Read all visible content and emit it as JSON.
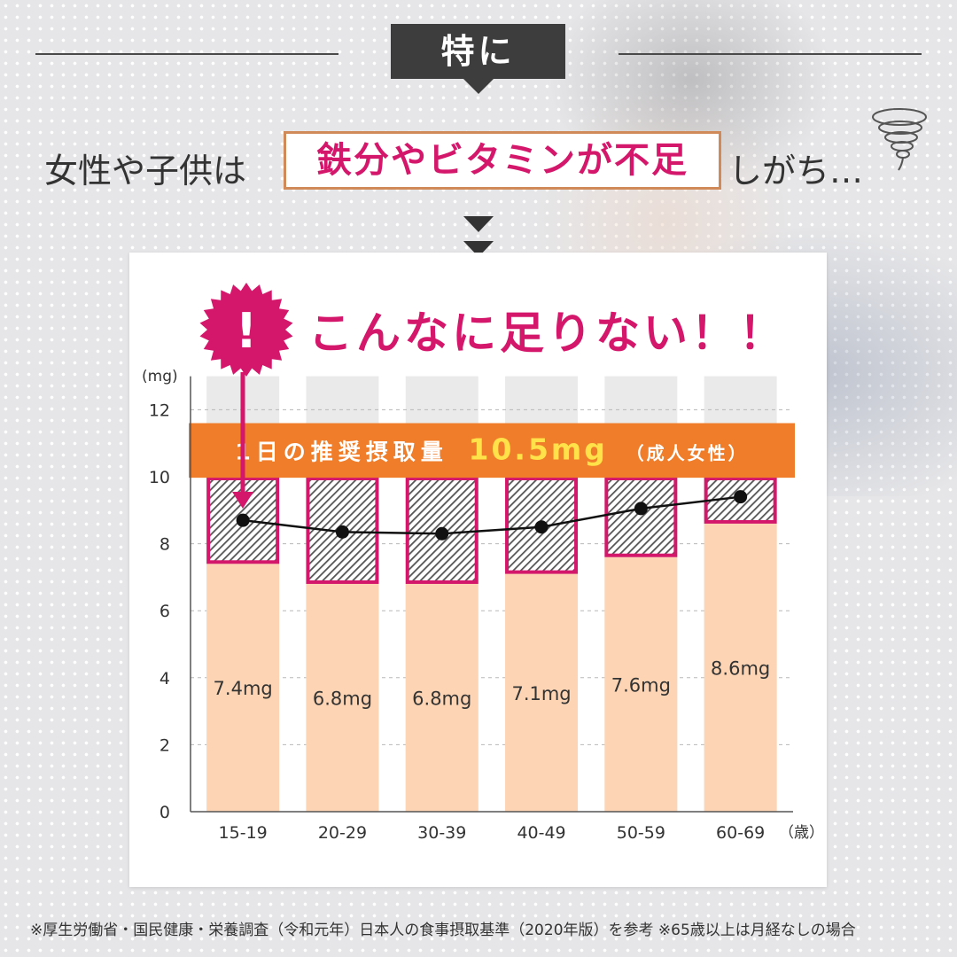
{
  "header": {
    "badge": "特に",
    "line_prefix": "女性や子供は",
    "line_highlight": "鉄分やビタミンが不足",
    "line_suffix": "しがち…"
  },
  "callout": {
    "icon_symbol": "!",
    "text": "こんなに足りない！！"
  },
  "colors": {
    "accent_magenta": "#d4176b",
    "bar_fill": "#fdd5b4",
    "band_orange": "#ef7d2a",
    "band_value": "#ffe14a",
    "dark_badge": "#3d3d3d",
    "hatch": "#555555"
  },
  "chart_data": {
    "type": "bar",
    "title": "",
    "xlabel": "",
    "ylabel": "",
    "y_unit_label": "(mg)",
    "x_unit_label": "（歳）",
    "categories": [
      "15-19",
      "20-29",
      "30-39",
      "40-49",
      "50-59",
      "60-69"
    ],
    "ylim": [
      0,
      13
    ],
    "yticks": [
      0,
      2,
      4,
      6,
      8,
      10,
      12
    ],
    "series": [
      {
        "values": [
          7.4,
          6.8,
          6.8,
          7.1,
          7.6,
          8.6
        ],
        "labels": [
          "7.4mg",
          "6.8mg",
          "6.8mg",
          "7.1mg",
          "7.6mg",
          "8.6mg"
        ]
      },
      {
        "values": [
          8.7,
          8.35,
          8.3,
          8.5,
          9.05,
          9.4
        ]
      }
    ],
    "shortfall_top": 10,
    "reference": {
      "value": 10.5,
      "label_prefix": "1日の推奨摂取量",
      "label_value": "10.5mg",
      "label_suffix": "（成人女性）"
    },
    "grid": true
  },
  "footnote": "※厚生労働省・国民健康・栄養調査（令和元年）日本人の食事摂取基準（2020年版）を参考 ※65歳以上は月経なしの場合"
}
